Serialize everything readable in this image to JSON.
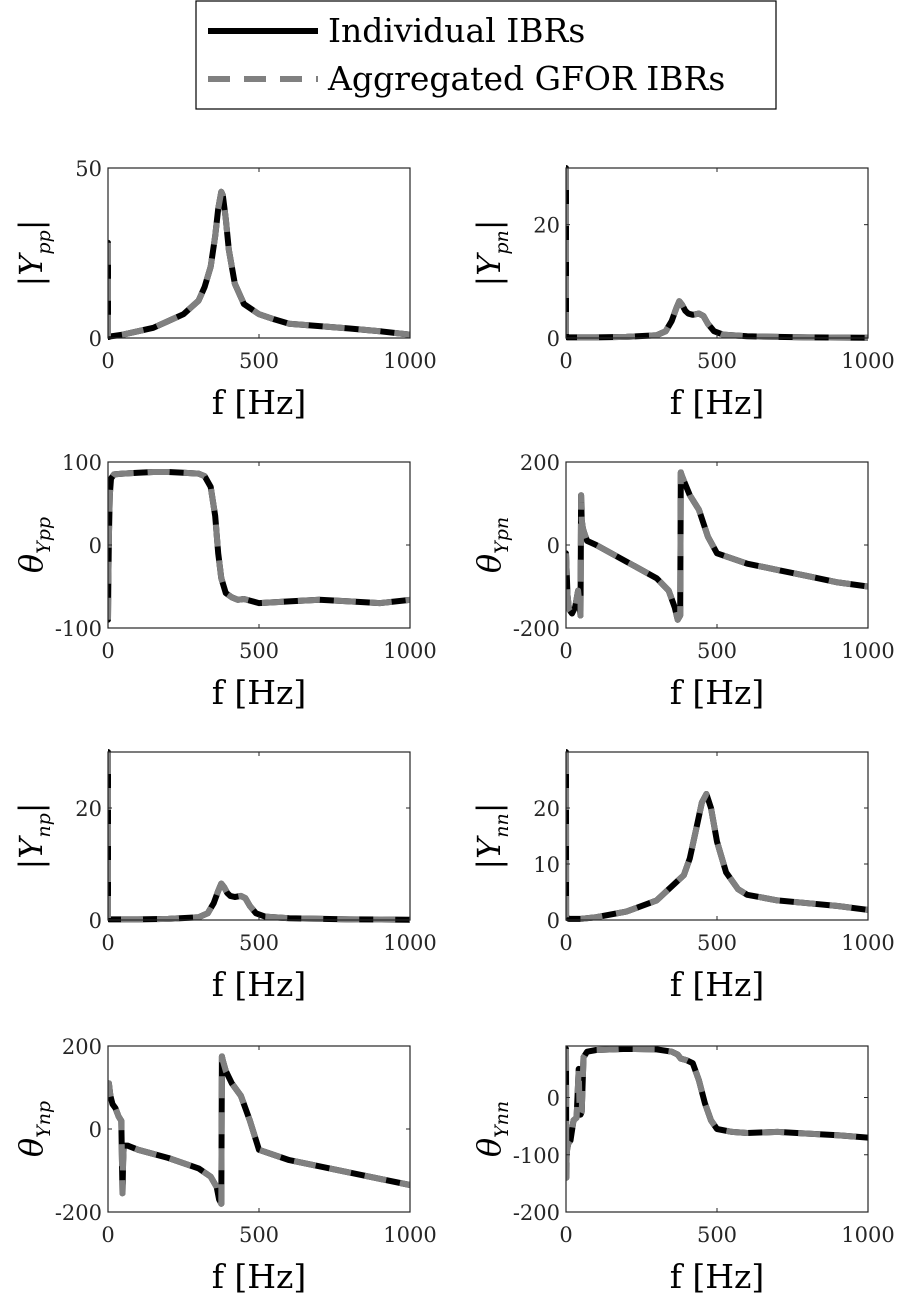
{
  "chart_data": {
    "legend": {
      "entries": [
        {
          "label": "Individual IBRs",
          "color": "#000000",
          "style": "solid"
        },
        {
          "label": "Aggregated GFOR IBRs",
          "color": "#808080",
          "style": "dashed"
        }
      ],
      "placement": "top-center"
    },
    "xlabel": "f [Hz]",
    "xlim": [
      0,
      1000
    ],
    "xticks": [
      "0",
      "500",
      "1000"
    ],
    "subplots": [
      {
        "id": "Ypp-mag",
        "type": "line",
        "ylabel_main": "|Y",
        "ylabel_sub": "pp",
        "ylabel_end": "|",
        "ylim": [
          0,
          50
        ],
        "yticks": [
          {
            "v": 0,
            "label": "0"
          },
          {
            "v": 50,
            "label": "50"
          }
        ],
        "x": [
          0,
          0.1,
          2,
          10,
          50,
          100,
          150,
          200,
          250,
          300,
          320,
          340,
          355,
          365,
          375,
          380,
          390,
          400,
          420,
          450,
          500,
          550,
          600,
          700,
          800,
          900,
          1000
        ],
        "y": [
          28,
          0.5,
          0.3,
          0.5,
          1,
          2,
          3,
          5,
          7,
          11,
          15,
          21,
          30,
          38,
          43,
          42,
          35,
          26,
          16,
          10,
          7,
          5.5,
          4.2,
          3.5,
          2.8,
          2,
          1
        ]
      },
      {
        "id": "Ypn-mag",
        "type": "line",
        "ylabel_main": "|Y",
        "ylabel_sub": "pn",
        "ylabel_end": "|",
        "ylim": [
          0,
          30
        ],
        "yticks": [
          {
            "v": 0,
            "label": "0"
          },
          {
            "v": 20,
            "label": "20"
          }
        ],
        "x": [
          0,
          0.1,
          5,
          100,
          200,
          300,
          330,
          350,
          365,
          375,
          385,
          395,
          405,
          420,
          440,
          455,
          470,
          490,
          520,
          600,
          800,
          1000
        ],
        "y": [
          30,
          0.2,
          0.1,
          0.1,
          0.2,
          0.5,
          1.2,
          3,
          5.2,
          6.5,
          5.8,
          4.8,
          4.3,
          4.1,
          4.3,
          3.9,
          2.5,
          1.2,
          0.6,
          0.3,
          0.1,
          0.05
        ]
      },
      {
        "id": "Ypp-ang",
        "type": "line",
        "ylabel_main": "θ",
        "ylabel_sub": "Ypp",
        "ylabel_end": "",
        "ylim": [
          -100,
          100
        ],
        "yticks": [
          {
            "v": -100,
            "label": "-100"
          },
          {
            "v": 0,
            "label": "0"
          },
          {
            "v": 100,
            "label": "100"
          }
        ],
        "x": [
          0,
          1,
          3,
          6,
          10,
          20,
          50,
          100,
          150,
          200,
          250,
          300,
          320,
          340,
          355,
          365,
          375,
          390,
          410,
          430,
          450,
          470,
          500,
          550,
          600,
          700,
          800,
          900,
          1000
        ],
        "y": [
          -90,
          -50,
          10,
          60,
          80,
          85,
          86,
          87,
          88,
          88,
          87,
          86,
          83,
          70,
          35,
          -10,
          -40,
          -58,
          -63,
          -66,
          -65,
          -67,
          -70,
          -69,
          -68,
          -66,
          -68,
          -70,
          -66
        ]
      },
      {
        "id": "Ypn-ang",
        "type": "line",
        "ylabel_main": "θ",
        "ylabel_sub": "Ypn",
        "ylabel_end": "",
        "ylim": [
          -200,
          200
        ],
        "yticks": [
          {
            "v": -200,
            "label": "-200"
          },
          {
            "v": 0,
            "label": "0"
          },
          {
            "v": 200,
            "label": "200"
          }
        ],
        "x": [
          0,
          5,
          10,
          20,
          30,
          40,
          48,
          50,
          52,
          56,
          60,
          70,
          100,
          200,
          300,
          340,
          360,
          370,
          378,
          380,
          382,
          390,
          410,
          440,
          470,
          500,
          600,
          700,
          800,
          900,
          1000
        ],
        "y": [
          -20,
          -120,
          -155,
          -165,
          -150,
          -110,
          -170,
          120,
          60,
          40,
          30,
          10,
          0,
          -40,
          -80,
          -110,
          -150,
          -180,
          -170,
          175,
          170,
          155,
          120,
          85,
          20,
          -20,
          -45,
          -60,
          -75,
          -90,
          -100
        ]
      },
      {
        "id": "Ynp-mag",
        "type": "line",
        "ylabel_main": "|Y",
        "ylabel_sub": "np",
        "ylabel_end": "|",
        "ylim": [
          0,
          30
        ],
        "yticks": [
          {
            "v": 0,
            "label": "0"
          },
          {
            "v": 20,
            "label": "20"
          }
        ],
        "x": [
          0,
          0.1,
          5,
          100,
          200,
          300,
          330,
          350,
          365,
          375,
          385,
          395,
          405,
          420,
          440,
          455,
          470,
          490,
          520,
          600,
          800,
          1000
        ],
        "y": [
          30,
          0.2,
          0.1,
          0.1,
          0.2,
          0.5,
          1.2,
          3,
          5.2,
          6.5,
          5.8,
          4.8,
          4.3,
          4.1,
          4.3,
          3.9,
          2.5,
          1.2,
          0.6,
          0.3,
          0.1,
          0.05
        ]
      },
      {
        "id": "Ynn-mag",
        "type": "line",
        "ylabel_main": "|Y",
        "ylabel_sub": "nn",
        "ylabel_end": "|",
        "ylim": [
          0,
          30
        ],
        "yticks": [
          {
            "v": 0,
            "label": "0"
          },
          {
            "v": 10,
            "label": "10"
          },
          {
            "v": 20,
            "label": "20"
          }
        ],
        "x": [
          0,
          0.2,
          10,
          50,
          100,
          200,
          300,
          350,
          370,
          390,
          410,
          430,
          450,
          465,
          480,
          500,
          530,
          570,
          600,
          650,
          700,
          800,
          900,
          1000
        ],
        "y": [
          30,
          0.5,
          0.2,
          0.2,
          0.5,
          1.5,
          3.5,
          6,
          7,
          8,
          11,
          16,
          21,
          22.5,
          20,
          14,
          8.5,
          5.5,
          4.5,
          4,
          3.5,
          3,
          2.5,
          1.8
        ]
      },
      {
        "id": "Ynp-ang",
        "type": "line",
        "ylabel_main": "θ",
        "ylabel_sub": "Ynp",
        "ylabel_end": "",
        "ylim": [
          -200,
          200
        ],
        "yticks": [
          {
            "v": -200,
            "label": "-200"
          },
          {
            "v": 0,
            "label": "0"
          },
          {
            "v": 200,
            "label": "200"
          }
        ],
        "x": [
          0,
          3,
          8,
          15,
          25,
          35,
          44,
          48,
          50,
          52,
          56,
          65,
          100,
          200,
          300,
          340,
          360,
          368,
          375,
          377,
          380,
          390,
          410,
          440,
          470,
          500,
          600,
          700,
          800,
          900,
          1000
        ],
        "y": [
          90,
          110,
          80,
          60,
          50,
          30,
          20,
          -155,
          -80,
          -45,
          -40,
          -40,
          -50,
          -70,
          -95,
          -115,
          -140,
          -170,
          -180,
          175,
          165,
          140,
          110,
          80,
          20,
          -50,
          -75,
          -90,
          -105,
          -120,
          -135
        ]
      },
      {
        "id": "Ynn-ang",
        "type": "line",
        "ylabel_main": "θ",
        "ylabel_sub": "Ynn",
        "ylabel_end": "",
        "ylim": [
          -200,
          90
        ],
        "yticks": [
          {
            "v": -200,
            "label": "-200"
          },
          {
            "v": -100,
            "label": "-100"
          },
          {
            "v": 0,
            "label": "0"
          }
        ],
        "x": [
          0,
          1,
          2,
          4,
          8,
          15,
          25,
          35,
          42,
          45,
          48,
          52,
          58,
          70,
          100,
          200,
          300,
          350,
          370,
          380,
          400,
          420,
          440,
          460,
          480,
          500,
          550,
          600,
          700,
          800,
          900,
          1000
        ],
        "y": [
          85,
          -140,
          -100,
          -90,
          -80,
          -75,
          -40,
          -35,
          50,
          -20,
          -30,
          -25,
          70,
          80,
          83,
          85,
          84,
          80,
          75,
          68,
          65,
          60,
          30,
          -10,
          -40,
          -55,
          -60,
          -62,
          -60,
          -63,
          -66,
          -70
        ]
      }
    ]
  }
}
